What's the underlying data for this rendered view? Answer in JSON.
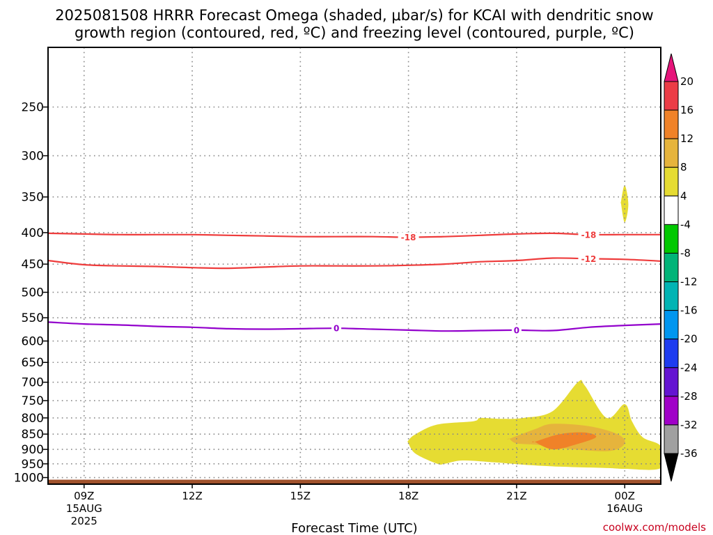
{
  "title": {
    "line1": "2025081508 HRRR Forecast Omega (shaded, μbar/s) for KCAI with dendritic snow",
    "line2": "growth region (contoured, red, ºC) and freezing level (contoured, purple, ºC)"
  },
  "source": "coolwx.com/models",
  "colors": {
    "dgz_contour": "#ee3c3c",
    "freezing_contour": "#9200cc",
    "ground": "#a0522d",
    "grid": "#888888",
    "accent_source": "#c8001e"
  },
  "chart_data": {
    "type": "heatmap",
    "xlabel": "Forecast Time (UTC)",
    "ylabel": "",
    "x_units": "hours since 2025-08-15 08Z",
    "xlim": [
      0,
      17
    ],
    "y_scale": "log-pressure (inverted)",
    "ylim": [
      200,
      1025
    ],
    "grid": true,
    "y_ticks": [
      250,
      300,
      350,
      400,
      450,
      500,
      550,
      600,
      650,
      700,
      750,
      800,
      850,
      900,
      950,
      1000
    ],
    "x_ticks": [
      {
        "x": 1,
        "label": "09Z",
        "sub1": "15AUG",
        "sub2": "2025"
      },
      {
        "x": 4,
        "label": "12Z",
        "sub1": "",
        "sub2": ""
      },
      {
        "x": 7,
        "label": "15Z",
        "sub1": "",
        "sub2": ""
      },
      {
        "x": 10,
        "label": "18Z",
        "sub1": "",
        "sub2": ""
      },
      {
        "x": 13,
        "label": "21Z",
        "sub1": "",
        "sub2": ""
      },
      {
        "x": 16,
        "label": "00Z",
        "sub1": "16AUG",
        "sub2": ""
      }
    ],
    "ground_level_hPa": 1008,
    "contours": [
      {
        "name": "DGZ -18",
        "kind": "dgz",
        "label": "-18",
        "label_x": [
          10,
          15
        ],
        "x": [
          0,
          1,
          2,
          3,
          4,
          5,
          6,
          7,
          8,
          9,
          10,
          11,
          12,
          13,
          14,
          15,
          16,
          17
        ],
        "y": [
          401,
          402,
          403,
          403,
          403,
          404,
          405,
          406,
          406,
          406,
          407,
          406,
          404,
          402,
          401,
          403,
          403,
          403
        ]
      },
      {
        "name": "DGZ -12",
        "kind": "dgz",
        "label": "-12",
        "label_x": [
          15
        ],
        "x": [
          0,
          1,
          2,
          3,
          4,
          5,
          6,
          7,
          8,
          9,
          10,
          11,
          12,
          13,
          14,
          15,
          16,
          17
        ],
        "y": [
          444,
          451,
          453,
          454,
          456,
          457,
          455,
          453,
          453,
          453,
          452,
          450,
          446,
          444,
          440,
          441,
          442,
          445
        ]
      },
      {
        "name": "Freezing 0",
        "kind": "freezing",
        "label": "0",
        "label_x": [
          8,
          13
        ],
        "x": [
          0,
          1,
          2,
          3,
          4,
          5,
          6,
          7,
          8,
          9,
          10,
          11,
          12,
          13,
          14,
          15,
          16,
          17
        ],
        "y": [
          559,
          563,
          565,
          568,
          570,
          573,
          574,
          573,
          572,
          574,
          576,
          578,
          577,
          576,
          577,
          570,
          566,
          563
        ]
      }
    ],
    "omega_regions": [
      {
        "level": "4 to 8",
        "color": "#e6dc32",
        "x": [
          10,
          10.2,
          10.8,
          11.8,
          12.0,
          12.6,
          13.2,
          14.0,
          14.7,
          14.9,
          15.5,
          16.0,
          16.2,
          16.5,
          17,
          17,
          16.0,
          15.5,
          14.2,
          13.2,
          12.4,
          11.5,
          11.0,
          10.8,
          10.2,
          10
        ],
        "y": [
          870,
          850,
          820,
          810,
          800,
          803,
          800,
          780,
          700,
          710,
          800,
          760,
          810,
          860,
          890,
          965,
          968,
          965,
          960,
          953,
          945,
          938,
          950,
          950,
          915,
          880
        ]
      },
      {
        "level": "4 to 8 (upper)",
        "color": "#e6dc32",
        "x": [
          15.9,
          16.0,
          16.1,
          16.0,
          15.9
        ],
        "y": [
          355,
          335,
          360,
          385,
          360
        ]
      },
      {
        "level": "8 to 12",
        "color": "#e6b43c",
        "x": [
          12.8,
          13.5,
          14.0,
          15.0,
          15.8,
          16.0,
          15.6,
          14.6,
          13.6,
          13.0,
          12.8
        ],
        "y": [
          865,
          835,
          818,
          825,
          850,
          880,
          905,
          900,
          885,
          880,
          865
        ]
      },
      {
        "level": "12 to 16",
        "color": "#f08228",
        "x": [
          13.5,
          14.2,
          14.9,
          15.2,
          14.6,
          14.0,
          13.5
        ],
        "y": [
          875,
          850,
          845,
          860,
          885,
          900,
          875
        ]
      }
    ],
    "colorbar": {
      "units": "μbar/s",
      "labels": [
        "20",
        "16",
        "12",
        "8",
        "4",
        "-4",
        "-8",
        "-12",
        "-16",
        "-20",
        "-24",
        "-28",
        "-32",
        "-36"
      ],
      "colors": [
        "#ec3c46",
        "#f08228",
        "#e6b43c",
        "#e6dc32",
        "#ffffff",
        "#00c800",
        "#00b478",
        "#00b4b4",
        "#0096f0",
        "#1e3cf0",
        "#6414d2",
        "#a000c8",
        "#a0a0a0"
      ],
      "top_arrow": "#e6147a",
      "bottom_arrow": "#000000"
    }
  }
}
